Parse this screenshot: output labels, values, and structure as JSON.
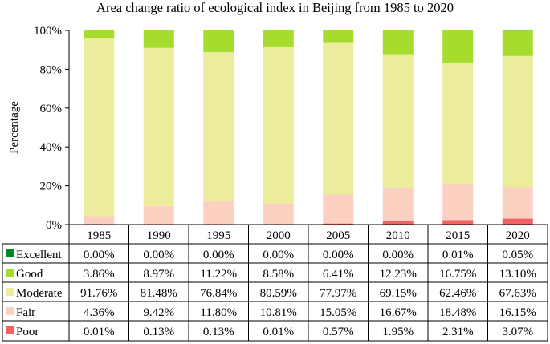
{
  "chart_data": {
    "type": "bar",
    "stacked": true,
    "percent": true,
    "title": "Area change ratio of ecological index in Beijing from 1985 to 2020",
    "xlabel": "",
    "ylabel": "Percentage",
    "ylim": [
      0,
      100
    ],
    "yticks": [
      "0%",
      "20%",
      "40%",
      "60%",
      "80%",
      "100%"
    ],
    "categories": [
      "1985",
      "1990",
      "1995",
      "2000",
      "2005",
      "2010",
      "2015",
      "2020"
    ],
    "series": [
      {
        "name": "Excellent",
        "color": "#00882b",
        "values": [
          0.0,
          0.0,
          0.0,
          0.0,
          0.0,
          0.0,
          0.01,
          0.05
        ],
        "labels": [
          "0.00%",
          "0.00%",
          "0.00%",
          "0.00%",
          "0.00%",
          "0.00%",
          "0.01%",
          "0.05%"
        ]
      },
      {
        "name": "Good",
        "color": "#a6dc2e",
        "values": [
          3.86,
          8.97,
          11.22,
          8.58,
          6.41,
          12.23,
          16.75,
          13.1
        ],
        "labels": [
          "3.86%",
          "8.97%",
          "11.22%",
          "8.58%",
          "6.41%",
          "12.23%",
          "16.75%",
          "13.10%"
        ]
      },
      {
        "name": "Moderate",
        "color": "#eced9c",
        "values": [
          91.76,
          81.48,
          76.84,
          80.59,
          77.97,
          69.15,
          62.46,
          67.63
        ],
        "labels": [
          "91.76%",
          "81.48%",
          "76.84%",
          "80.59%",
          "77.97%",
          "69.15%",
          "62.46%",
          "67.63%"
        ]
      },
      {
        "name": "Fair",
        "color": "#fcd0c1",
        "values": [
          4.36,
          9.42,
          11.8,
          10.81,
          15.05,
          16.67,
          18.48,
          16.15
        ],
        "labels": [
          "4.36%",
          "9.42%",
          "11.80%",
          "10.81%",
          "15.05%",
          "16.67%",
          "18.48%",
          "16.15%"
        ]
      },
      {
        "name": "Poor",
        "color": "#f26262",
        "values": [
          0.01,
          0.13,
          0.13,
          0.01,
          0.57,
          1.95,
          2.31,
          3.07
        ],
        "labels": [
          "0.01%",
          "0.13%",
          "0.13%",
          "0.01%",
          "0.57%",
          "1.95%",
          "2.31%",
          "3.07%"
        ]
      }
    ],
    "grid": false,
    "legend": "data-table-left"
  }
}
